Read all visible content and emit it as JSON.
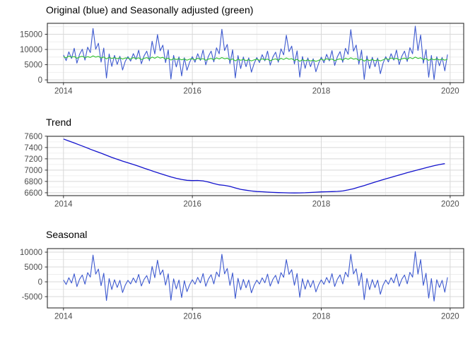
{
  "figure_name": "time-series-decomposition",
  "style": {
    "background": "#ffffff",
    "grid_major_color": "#d8d8d8",
    "grid_minor_color": "#ebebeb",
    "panel_border_color": "#2e2e2e",
    "tick_mark_color": "#333333",
    "tick_label_color": "#4d4d4d",
    "title_color": "#000000",
    "original_blue": "#3d59cf",
    "adjusted_green": "#2fc12f",
    "trend_blue": "#1212cd"
  },
  "chart_data": [
    {
      "type": "line",
      "title": "Original (blue) and Seasonally adjusted (green)",
      "xlabel": "",
      "ylabel": "",
      "grid": true,
      "legend_position": "none",
      "x_start": 2014.0,
      "x_step": 0.0416667,
      "xlim": [
        2013.75,
        2020.21
      ],
      "ylim": [
        -900,
        18600
      ],
      "x_major_ticks": [
        2014,
        2016,
        2018,
        2020
      ],
      "x_minor_ticks": [
        2015,
        2017,
        2019
      ],
      "y_major_ticks": [
        0,
        5000,
        10000,
        15000
      ],
      "y_minor_ticks": [
        2500,
        7500,
        12500,
        17500
      ],
      "series": [
        {
          "name": "Original",
          "color": "#3d59cf",
          "values": [
            8200,
            6350,
            9220,
            7050,
            10400,
            5500,
            8420,
            10080,
            6500,
            10750,
            8980,
            16900,
            10080,
            12050,
            5850,
            10460,
            600,
            8520,
            4450,
            8050,
            5080,
            7780,
            3250,
            6100,
            7650,
            6150,
            8650,
            6700,
            9750,
            5300,
            7880,
            9420,
            6280,
            12700,
            8520,
            14900,
            9580,
            11400,
            5680,
            9850,
            300,
            8050,
            4280,
            7580,
            1300,
            7300,
            3180,
            5820,
            7650,
            5800,
            8600,
            6400,
            9800,
            4950,
            7780,
            9460,
            5920,
            10550,
            8570,
            16650,
            9630,
            11650,
            5330,
            9900,
            650,
            8000,
            3730,
            7530,
            4350,
            7250,
            2530,
            5370,
            7350,
            5700,
            8300,
            6280,
            9450,
            4850,
            7530,
            9100,
            5820,
            10200,
            8220,
            14700,
            9280,
            11100,
            5230,
            9550,
            900,
            7700,
            3780,
            7230,
            4350,
            6950,
            2680,
            5370,
            7470,
            5620,
            8420,
            6240,
            9620,
            4770,
            7600,
            9280,
            5780,
            10380,
            8400,
            16540,
            9460,
            11440,
            5170,
            9750,
            150,
            7870,
            3710,
            7430,
            4350,
            7170,
            2020,
            5430,
            7650,
            5900,
            8600,
            6500,
            9800,
            5050,
            7810,
            9460,
            6050,
            10560,
            8560,
            17670,
            9640,
            14770,
            5450,
            9930,
            880,
            8060,
            100,
            7630,
            4650,
            7380,
            2980,
            8350
          ]
        },
        {
          "name": "Seasonally adjusted",
          "color": "#2fc12f",
          "values": [
            7600,
            7250,
            7820,
            7450,
            7700,
            7100,
            7520,
            7780,
            7300,
            7650,
            7380,
            7900,
            7480,
            7750,
            7150,
            7560,
            6900,
            7420,
            7050,
            7350,
            6980,
            7280,
            6850,
            7200,
            7150,
            6850,
            7350,
            7000,
            7250,
            6700,
            7080,
            7320,
            6880,
            7500,
            7120,
            7600,
            7180,
            7400,
            6780,
            7150,
            6500,
            7050,
            6680,
            6980,
            6600,
            6900,
            6480,
            6820,
            6950,
            6600,
            7100,
            6750,
            7000,
            6450,
            6830,
            7060,
            6620,
            7250,
            6870,
            7350,
            6930,
            7150,
            6530,
            6900,
            6250,
            6800,
            6430,
            6730,
            6350,
            6650,
            6230,
            6570,
            6800,
            6450,
            6950,
            6600,
            6850,
            6300,
            6680,
            6900,
            6470,
            7100,
            6720,
            7200,
            6780,
            7000,
            6380,
            6750,
            6100,
            6650,
            6280,
            6580,
            6200,
            6500,
            6080,
            6420,
            6820,
            6470,
            6970,
            6620,
            6870,
            6320,
            6700,
            6930,
            6500,
            7130,
            6750,
            7240,
            6810,
            7040,
            6420,
            6800,
            6150,
            6720,
            6360,
            6680,
            6300,
            6620,
            6220,
            6580,
            7050,
            6700,
            7200,
            6850,
            7100,
            6550,
            6930,
            7160,
            6730,
            7360,
            6980,
            7470,
            7040,
            7270,
            6650,
            7030,
            6380,
            6960,
            6600,
            6930,
            6550,
            6880,
            6480,
            6850
          ]
        }
      ]
    },
    {
      "type": "line",
      "title": "Trend",
      "xlabel": "",
      "ylabel": "",
      "grid": true,
      "legend_position": "none",
      "x_start": 2014.0,
      "x_step": 0.0833333,
      "xlim": [
        2013.75,
        2020.21
      ],
      "ylim": [
        6549,
        7598
      ],
      "x_major_ticks": [
        2014,
        2016,
        2018,
        2020
      ],
      "x_minor_ticks": [
        2015,
        2017,
        2019
      ],
      "y_major_ticks": [
        6600,
        6800,
        7000,
        7200,
        7400,
        7600
      ],
      "y_minor_ticks": [
        6700,
        6900,
        7100,
        7300,
        7500
      ],
      "series": [
        {
          "name": "Trend",
          "color": "#1212cd",
          "values": [
            7550,
            7515,
            7480,
            7445,
            7408,
            7370,
            7335,
            7300,
            7262,
            7225,
            7192,
            7160,
            7130,
            7100,
            7068,
            7035,
            7003,
            6970,
            6940,
            6910,
            6880,
            6855,
            6835,
            6820,
            6815,
            6818,
            6810,
            6790,
            6762,
            6740,
            6730,
            6712,
            6685,
            6660,
            6645,
            6632,
            6622,
            6618,
            6612,
            6607,
            6603,
            6600,
            6598,
            6597,
            6598,
            6600,
            6605,
            6610,
            6615,
            6618,
            6620,
            6624,
            6632,
            6650,
            6672,
            6700,
            6728,
            6758,
            6788,
            6818,
            6845,
            6872,
            6900,
            6928,
            6955,
            6980,
            7005,
            7030,
            7055,
            7078,
            7098,
            7115
          ]
        }
      ]
    },
    {
      "type": "line",
      "title": "Seasonal",
      "xlabel": "",
      "ylabel": "",
      "grid": true,
      "legend_position": "none",
      "x_start": 2014.0,
      "x_step": 0.0416667,
      "xlim": [
        2013.75,
        2020.21
      ],
      "ylim": [
        -8800,
        11200
      ],
      "x_major_ticks": [
        2014,
        2016,
        2018,
        2020
      ],
      "x_minor_ticks": [
        2015,
        2017,
        2019
      ],
      "y_major_ticks": [
        -5000,
        0,
        5000,
        10000
      ],
      "y_minor_ticks": [
        -2500,
        2500,
        7500
      ],
      "series": [
        {
          "name": "Seasonal",
          "color": "#3d59cf",
          "values": [
            600,
            -900,
            1400,
            -400,
            2700,
            -1600,
            900,
            2300,
            -800,
            3100,
            1600,
            9000,
            2600,
            4300,
            -1300,
            2900,
            -6300,
            1100,
            -2600,
            700,
            -1900,
            500,
            -3600,
            -1100,
            500,
            -700,
            1300,
            -300,
            2500,
            -1400,
            800,
            2100,
            -600,
            5200,
            1400,
            7300,
            2400,
            4000,
            -1100,
            2700,
            -6200,
            1000,
            -2400,
            600,
            -5300,
            400,
            -3300,
            -1000,
            700,
            -800,
            1500,
            -350,
            2800,
            -1500,
            950,
            2400,
            -700,
            3300,
            1700,
            9300,
            2700,
            4500,
            -1200,
            3000,
            -5600,
            1200,
            -2700,
            800,
            -2000,
            600,
            -3700,
            -1200,
            550,
            -750,
            1350,
            -320,
            2600,
            -1450,
            850,
            2200,
            -650,
            3100,
            1500,
            7500,
            2500,
            4100,
            -1150,
            2800,
            -5200,
            1050,
            -2500,
            650,
            -1850,
            450,
            -3400,
            -1050,
            650,
            -850,
            1450,
            -380,
            2750,
            -1550,
            900,
            2350,
            -720,
            3250,
            1650,
            9300,
            2650,
            4400,
            -1250,
            2950,
            -6000,
            1150,
            -2650,
            750,
            -1950,
            550,
            -4200,
            -1150,
            600,
            -800,
            1400,
            -350,
            2700,
            -1500,
            880,
            2300,
            -680,
            3200,
            1580,
            10200,
            2600,
            7500,
            -1200,
            2900,
            -5500,
            1100,
            -6500,
            700,
            -1900,
            500,
            -3500,
            1500
          ]
        }
      ]
    }
  ]
}
